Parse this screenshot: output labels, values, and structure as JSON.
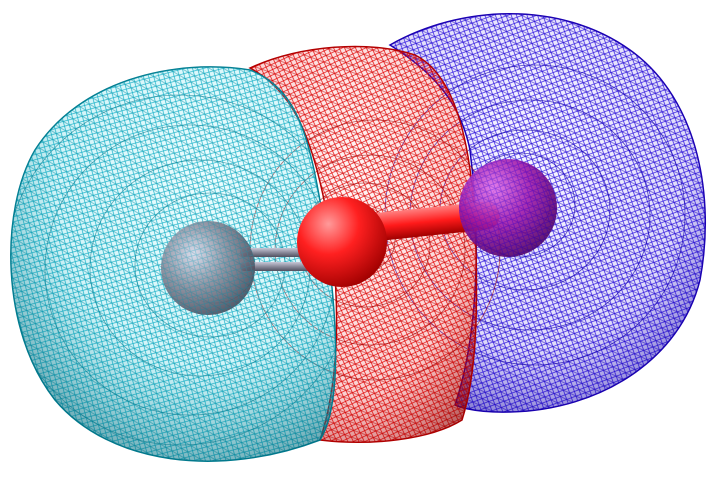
{
  "scene": {
    "background": "#ffffff",
    "surfaces": [
      {
        "id": "left-lobe",
        "color_dark": "#006f86",
        "color_light": "#37e3f2"
      },
      {
        "id": "middle-band",
        "color_dark": "#b00000",
        "color_light": "#ff2222"
      },
      {
        "id": "right-lobe",
        "color_dark": "#1500b8",
        "color_light": "#5a40ff"
      }
    ],
    "atoms": [
      {
        "id": "left-atom",
        "color": "#8a8a9a"
      },
      {
        "id": "center-atom",
        "color": "#ff2020"
      },
      {
        "id": "right-atom",
        "color": "#a01aa8"
      }
    ],
    "bonds": [
      {
        "id": "left-double-bond",
        "color": "#8a8a9a",
        "order": 2
      },
      {
        "id": "right-bond",
        "color": "#ff2020",
        "order": 1
      }
    ]
  }
}
